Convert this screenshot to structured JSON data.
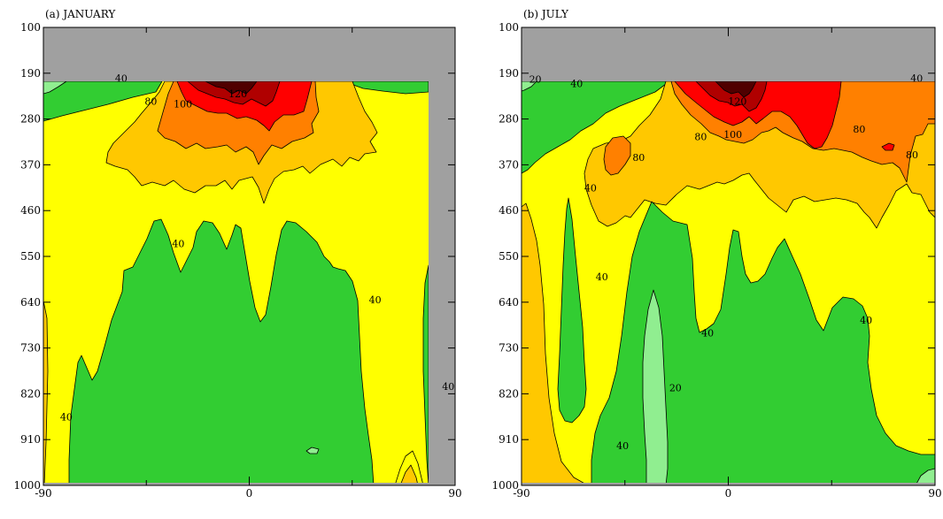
{
  "chart_data": [
    {
      "type": "contour",
      "title": "(a) JANUARY",
      "xlim": [
        -90,
        90
      ],
      "ylim": [
        1000,
        100
      ],
      "x_ticks": [
        -90,
        0,
        90
      ],
      "y_ticks": [
        100,
        190,
        280,
        370,
        460,
        550,
        640,
        730,
        820,
        910,
        1000
      ],
      "missing_data_color": "#a0a0a0",
      "contour_levels": [
        20,
        40,
        60,
        80,
        100,
        120,
        140
      ],
      "band_colors": [
        "#90ee90",
        "#32cd32",
        "#ffff00",
        "#ffc800",
        "#ff8000",
        "#ff0000",
        "#b00000",
        "#500000"
      ],
      "missing_regions": [
        {
          "from_pressure": 100,
          "to_pressure": 195
        },
        {
          "from_pressure": 950,
          "to_pressure": 1000
        },
        {
          "from_lat": 83,
          "to_lat": 90
        }
      ],
      "contour_labels": [
        {
          "text": "40",
          "lat": -56,
          "p": 200
        },
        {
          "text": "80",
          "lat": -43,
          "p": 245
        },
        {
          "text": "100",
          "lat": -29,
          "p": 250
        },
        {
          "text": "120",
          "lat": -5,
          "p": 230
        },
        {
          "text": "40",
          "lat": -31,
          "p": 525
        },
        {
          "text": "40",
          "lat": 55,
          "p": 635
        },
        {
          "text": "40",
          "lat": 87,
          "p": 805
        },
        {
          "text": "40",
          "lat": -80,
          "p": 865
        }
      ]
    },
    {
      "type": "contour",
      "title": "(b) JULY",
      "xlim": [
        -90,
        90
      ],
      "ylim": [
        1000,
        100
      ],
      "x_ticks": [
        -90,
        0,
        90
      ],
      "y_ticks": [
        100,
        190,
        280,
        370,
        460,
        550,
        640,
        730,
        820,
        910,
        1000
      ],
      "missing_data_color": "#a0a0a0",
      "contour_levels": [
        20,
        40,
        60,
        80,
        100,
        120,
        140
      ],
      "band_colors": [
        "#90ee90",
        "#32cd32",
        "#ffff00",
        "#ffc800",
        "#ff8000",
        "#ff0000",
        "#b00000",
        "#500000"
      ],
      "missing_regions": [
        {
          "from_pressure": 100,
          "to_pressure": 195
        },
        {
          "from_pressure": 950,
          "to_pressure": 1000
        }
      ],
      "contour_labels": [
        {
          "text": "20",
          "lat": -84,
          "p": 202
        },
        {
          "text": "40",
          "lat": -66,
          "p": 210
        },
        {
          "text": "40",
          "lat": 82,
          "p": 200
        },
        {
          "text": "120",
          "lat": 4,
          "p": 245
        },
        {
          "text": "80",
          "lat": -12,
          "p": 315
        },
        {
          "text": "100",
          "lat": 2,
          "p": 310
        },
        {
          "text": "80",
          "lat": 57,
          "p": 300
        },
        {
          "text": "80",
          "lat": -39,
          "p": 355
        },
        {
          "text": "80",
          "lat": 80,
          "p": 350
        },
        {
          "text": "40",
          "lat": -60,
          "p": 415
        },
        {
          "text": "40",
          "lat": -55,
          "p": 590
        },
        {
          "text": "40",
          "lat": -9,
          "p": 700
        },
        {
          "text": "40",
          "lat": 60,
          "p": 675
        },
        {
          "text": "20",
          "lat": -23,
          "p": 808
        },
        {
          "text": "40",
          "lat": -46,
          "p": 922
        }
      ]
    }
  ]
}
